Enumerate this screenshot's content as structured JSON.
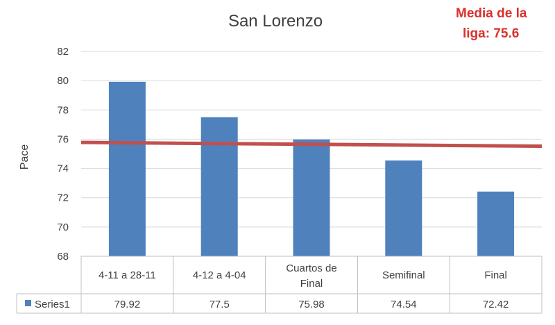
{
  "chart_data": {
    "type": "bar",
    "title": "San Lorenzo",
    "ylabel": "Pace",
    "xlabel": "",
    "ylim": [
      68,
      82
    ],
    "yticks": [
      68,
      70,
      72,
      74,
      76,
      78,
      80,
      82
    ],
    "categories": [
      "4-11 a 28-11",
      "4-12 a 4-04",
      "Cuartos de Final",
      "Semifinal",
      "Final"
    ],
    "series": [
      {
        "name": "Series1",
        "values": [
          79.92,
          77.5,
          75.98,
          74.54,
          72.42
        ],
        "color": "#4f81bd"
      }
    ],
    "value_labels": [
      "79.92",
      "77.5",
      "75.98",
      "74.54",
      "72.42"
    ],
    "reference_line": {
      "value": 75.6,
      "label_line1": "Media de la",
      "label_line2": "liga: 75.6",
      "color": "#c0504d"
    },
    "grid": true,
    "legend": "data-table"
  }
}
